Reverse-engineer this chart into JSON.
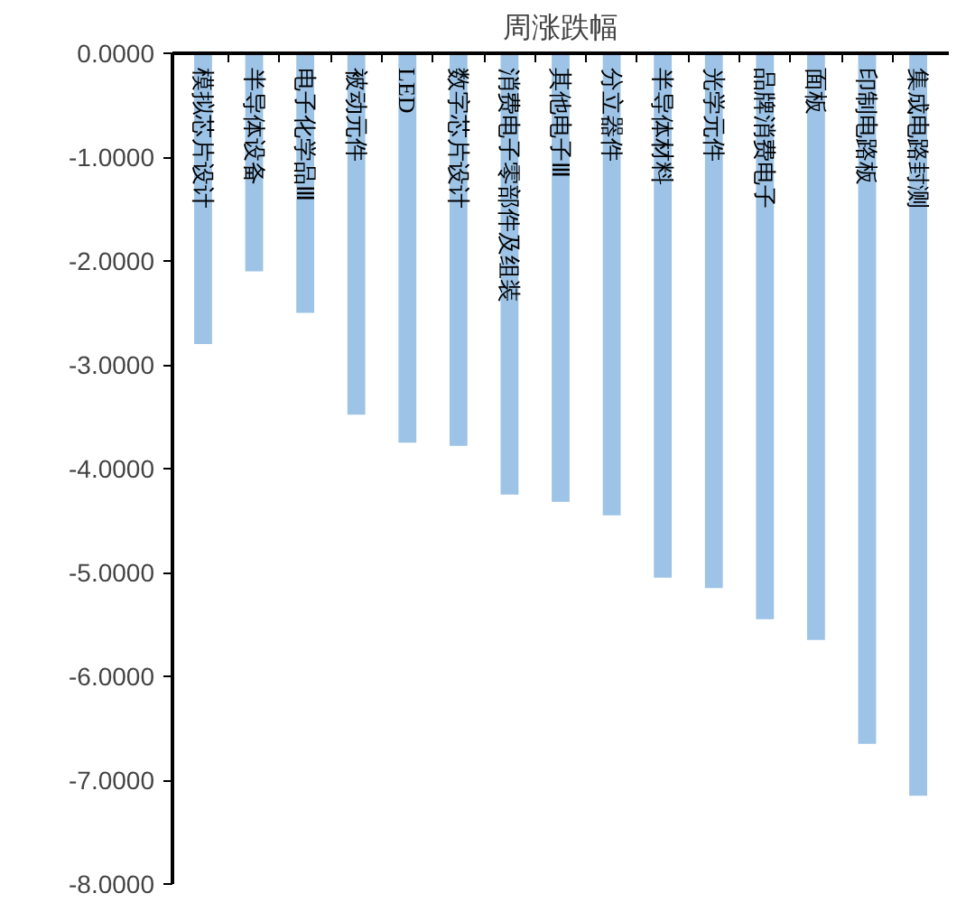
{
  "chart_data": {
    "type": "bar",
    "title": "周涨跌幅",
    "categories": [
      "模拟芯片设计",
      "半导体设备",
      "电子化学品Ⅲ",
      "被动元件",
      "LED",
      "数字芯片设计",
      "消费电子零部件及组装",
      "其他电子Ⅲ",
      "分立器件",
      "半导体材料",
      "光学元件",
      "品牌消费电子",
      "面板",
      "印制电路板",
      "集成电路封测"
    ],
    "values": [
      -2.8,
      -2.1,
      -2.5,
      -3.48,
      -3.75,
      -3.78,
      -4.25,
      -4.32,
      -4.45,
      -5.05,
      -5.15,
      -5.45,
      -5.65,
      -6.65,
      -7.15
    ],
    "color": "#9dc3e6",
    "ylim": [
      -8,
      0
    ],
    "yticks": [
      {
        "value": 0,
        "label": "0.0000"
      },
      {
        "value": -1,
        "label": "-1.0000"
      },
      {
        "value": -2,
        "label": "-2.0000"
      },
      {
        "value": -3,
        "label": "-3.0000"
      },
      {
        "value": -4,
        "label": "-4.0000"
      },
      {
        "value": -5,
        "label": "-5.0000"
      },
      {
        "value": -6,
        "label": "-6.0000"
      },
      {
        "value": -7,
        "label": "-7.0000"
      },
      {
        "value": -8,
        "label": "-8.0000"
      }
    ],
    "grid": false
  }
}
